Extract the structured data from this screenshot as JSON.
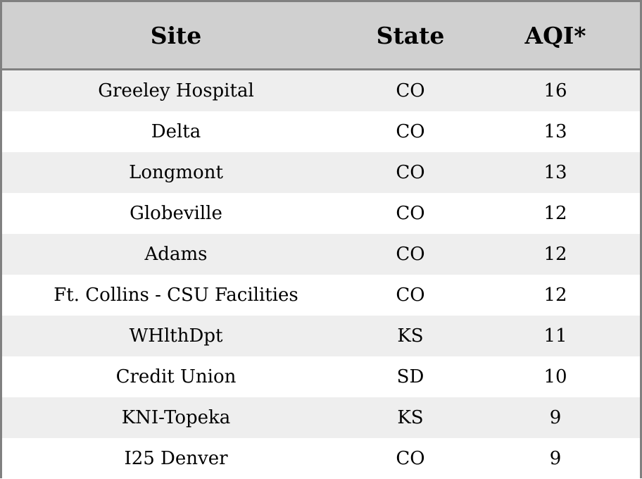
{
  "table": {
    "headers": {
      "site": "Site",
      "state": "State",
      "aqi": "AQI*"
    },
    "rows": [
      {
        "site": "Greeley Hospital",
        "state": "CO",
        "aqi": "16"
      },
      {
        "site": "Delta",
        "state": "CO",
        "aqi": "13"
      },
      {
        "site": "Longmont",
        "state": "CO",
        "aqi": "13"
      },
      {
        "site": "Globeville",
        "state": "CO",
        "aqi": "12"
      },
      {
        "site": "Adams",
        "state": "CO",
        "aqi": "12"
      },
      {
        "site": "Ft. Collins - CSU Facilities",
        "state": "CO",
        "aqi": "12"
      },
      {
        "site": "WHlthDpt",
        "state": "KS",
        "aqi": "11"
      },
      {
        "site": "Credit Union",
        "state": "SD",
        "aqi": "10"
      },
      {
        "site": "KNI-Topeka",
        "state": "KS",
        "aqi": "9"
      },
      {
        "site": "I25 Denver",
        "state": "CO",
        "aqi": "9"
      }
    ]
  },
  "colors": {
    "header_bg": "#d0d0d0",
    "row_alt_bg": "#eeeeee",
    "row_bg": "#ffffff",
    "border": "#808080"
  }
}
